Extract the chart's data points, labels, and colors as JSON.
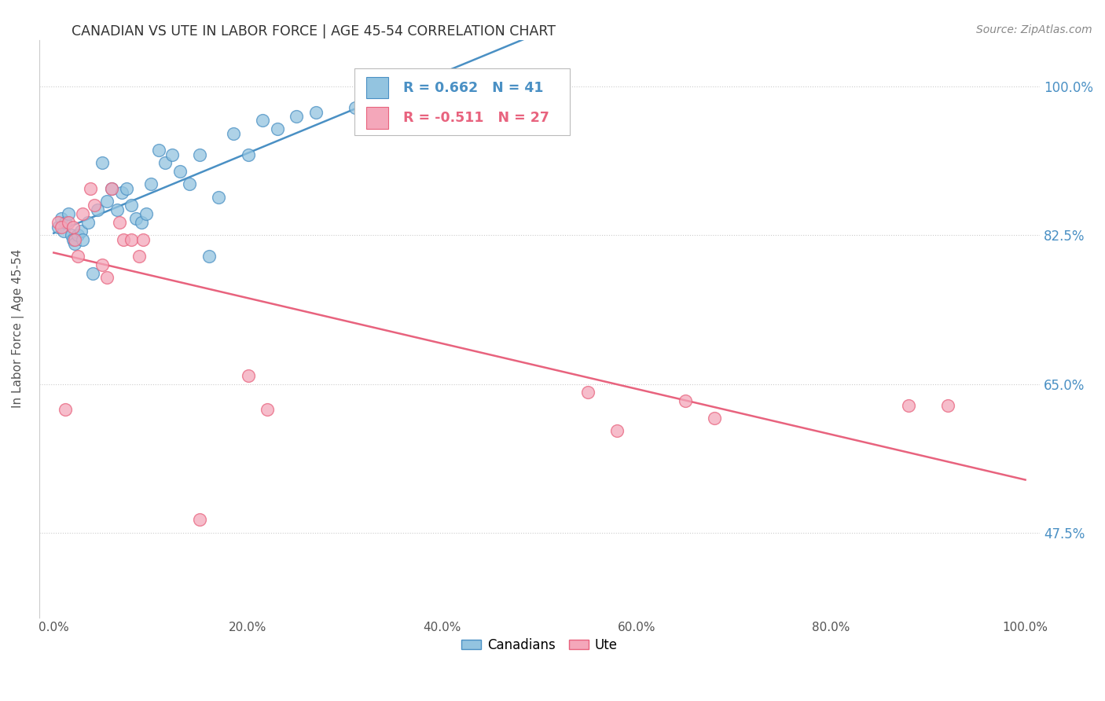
{
  "title": "CANADIAN VS UTE IN LABOR FORCE | AGE 45-54 CORRELATION CHART",
  "source": "Source: ZipAtlas.com",
  "ylabel": "In Labor Force | Age 45-54",
  "legend_label1": "Canadians",
  "legend_label2": "Ute",
  "r1": 0.662,
  "n1": 41,
  "r2": -0.511,
  "n2": 27,
  "color_blue": "#93c4e0",
  "color_pink": "#f4a7ba",
  "color_blue_line": "#4a90c4",
  "color_pink_line": "#e8637e",
  "color_blue_text": "#4a90c4",
  "color_pink_text": "#e8637e",
  "ytick_labels": [
    "47.5%",
    "65.0%",
    "82.5%",
    "100.0%"
  ],
  "ytick_values": [
    0.475,
    0.65,
    0.825,
    1.0
  ],
  "ylim": [
    0.375,
    1.055
  ],
  "xlim": [
    -0.015,
    1.015
  ],
  "xtick_positions": [
    0.0,
    0.2,
    0.4,
    0.6,
    0.8,
    1.0
  ],
  "xtick_labels": [
    "0.0%",
    "20.0%",
    "40.0%",
    "60.0%",
    "80.0%",
    "100.0%"
  ],
  "canadians_x": [
    0.005,
    0.008,
    0.01,
    0.012,
    0.015,
    0.018,
    0.02,
    0.022,
    0.025,
    0.028,
    0.03,
    0.035,
    0.04,
    0.045,
    0.05,
    0.055,
    0.06,
    0.065,
    0.07,
    0.075,
    0.08,
    0.085,
    0.09,
    0.095,
    0.1,
    0.108,
    0.115,
    0.122,
    0.13,
    0.14,
    0.15,
    0.16,
    0.17,
    0.185,
    0.2,
    0.215,
    0.23,
    0.25,
    0.27,
    0.31,
    0.4
  ],
  "canadians_y": [
    0.835,
    0.845,
    0.83,
    0.84,
    0.85,
    0.825,
    0.82,
    0.815,
    0.825,
    0.83,
    0.82,
    0.84,
    0.78,
    0.855,
    0.91,
    0.865,
    0.88,
    0.855,
    0.875,
    0.88,
    0.86,
    0.845,
    0.84,
    0.85,
    0.885,
    0.925,
    0.91,
    0.92,
    0.9,
    0.885,
    0.92,
    0.8,
    0.87,
    0.945,
    0.92,
    0.96,
    0.95,
    0.965,
    0.97,
    0.975,
    0.98
  ],
  "ute_x": [
    0.005,
    0.008,
    0.012,
    0.015,
    0.02,
    0.022,
    0.025,
    0.03,
    0.038,
    0.042,
    0.05,
    0.055,
    0.06,
    0.068,
    0.072,
    0.08,
    0.088,
    0.092,
    0.15,
    0.2,
    0.22,
    0.55,
    0.58,
    0.65,
    0.68,
    0.88,
    0.92
  ],
  "ute_y": [
    0.84,
    0.835,
    0.62,
    0.84,
    0.835,
    0.82,
    0.8,
    0.85,
    0.88,
    0.86,
    0.79,
    0.775,
    0.88,
    0.84,
    0.82,
    0.82,
    0.8,
    0.82,
    0.49,
    0.66,
    0.62,
    0.64,
    0.595,
    0.63,
    0.61,
    0.625,
    0.625
  ],
  "background_color": "#ffffff",
  "grid_color": "#cccccc"
}
